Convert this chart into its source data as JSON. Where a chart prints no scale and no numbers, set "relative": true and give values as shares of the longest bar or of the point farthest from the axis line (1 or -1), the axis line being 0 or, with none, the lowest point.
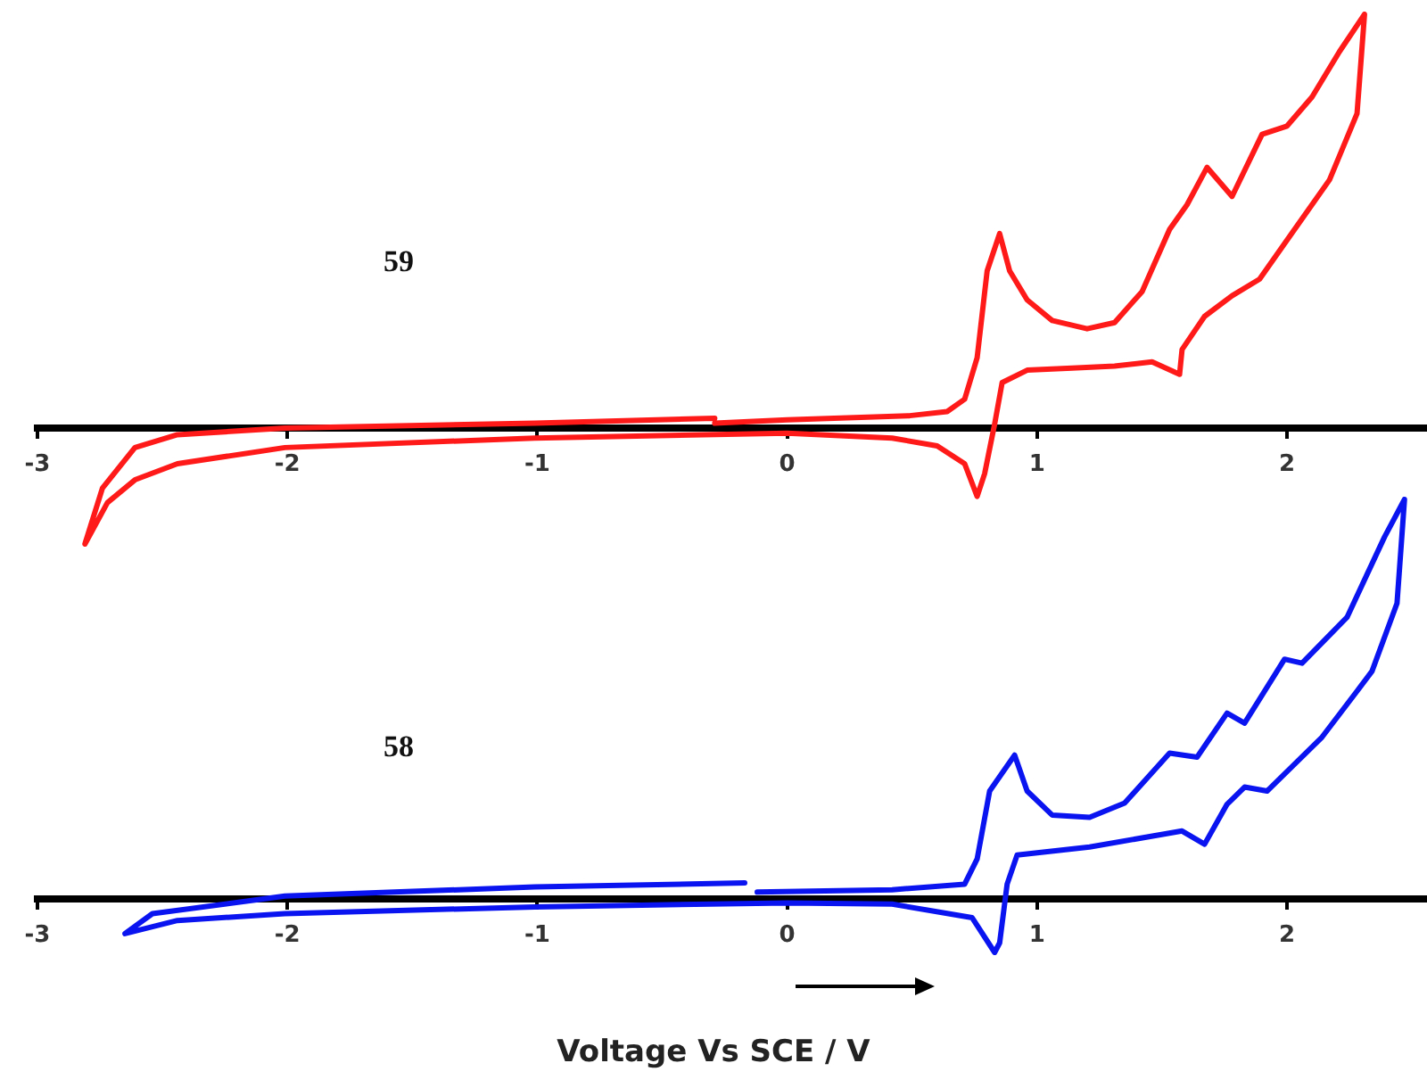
{
  "chart_data": [
    {
      "type": "line",
      "relative": true,
      "xlim": [
        -3,
        2.56
      ],
      "xticks": [
        -3,
        -2,
        -1,
        0,
        1,
        2
      ],
      "grid": false,
      "annotations": [
        "59"
      ],
      "series": [
        {
          "color": "#ff1a1a",
          "x": [
            -0.29,
            0,
            0.49,
            0.64,
            0.71,
            0.76,
            0.8,
            0.85,
            0.89,
            0.96,
            1.06,
            1.2,
            1.31,
            1.42,
            1.53,
            1.6,
            1.68,
            1.78,
            1.9,
            2.0,
            2.1,
            2.21,
            2.31,
            2.28,
            2.17,
            2.03,
            1.89,
            1.78,
            1.67,
            1.58,
            1.57,
            1.46,
            1.31,
            1.14,
            0.96,
            0.86,
            0.83,
            0.79,
            0.76,
            0.71,
            0.6,
            0.42,
            0,
            -1.01,
            -2.01,
            -2.44,
            -2.61,
            -2.72,
            -2.81,
            -2.74,
            -2.61,
            -2.44,
            -2.01,
            -1.01,
            -0.29
          ],
          "values": [
            0.012,
            0.02,
            0.03,
            0.04,
            0.07,
            0.17,
            0.38,
            0.47,
            0.38,
            0.31,
            0.26,
            0.24,
            0.255,
            0.33,
            0.48,
            0.54,
            0.63,
            0.56,
            0.71,
            0.73,
            0.8,
            0.91,
            1.0,
            0.76,
            0.6,
            0.48,
            0.36,
            0.32,
            0.27,
            0.19,
            0.13,
            0.16,
            0.15,
            0.145,
            0.14,
            0.11,
            0.01,
            -0.11,
            -0.165,
            -0.086,
            -0.043,
            -0.024,
            -0.012,
            -0.024,
            -0.047,
            -0.086,
            -0.125,
            -0.18,
            -0.28,
            -0.145,
            -0.047,
            -0.016,
            0,
            0.012,
            0.024
          ]
        }
      ]
    },
    {
      "type": "line",
      "relative": true,
      "xlim": [
        -3,
        2.56
      ],
      "xticks": [
        -3,
        -2,
        -1,
        0,
        1,
        2
      ],
      "grid": false,
      "annotations": [
        "58"
      ],
      "xlabel": "Voltage Vs SCE / V",
      "series": [
        {
          "color": "#0a14f0",
          "x": [
            -0.12,
            0.42,
            0.71,
            0.76,
            0.81,
            0.91,
            0.96,
            1.06,
            1.21,
            1.35,
            1.53,
            1.64,
            1.76,
            1.83,
            1.99,
            2.06,
            2.24,
            2.39,
            2.47,
            2.44,
            2.34,
            2.28,
            2.14,
            1.92,
            1.83,
            1.76,
            1.67,
            1.58,
            1.21,
            0.92,
            0.88,
            0.85,
            0.83,
            0.74,
            0.42,
            0,
            -1.01,
            -2.01,
            -2.44,
            -2.65,
            -2.54,
            -2.01,
            -1.01,
            -0.17
          ],
          "values": [
            0.017,
            0.023,
            0.037,
            0.1,
            0.27,
            0.36,
            0.27,
            0.21,
            0.204,
            0.24,
            0.365,
            0.355,
            0.465,
            0.44,
            0.6,
            0.59,
            0.705,
            0.906,
            1.0,
            0.74,
            0.57,
            0.52,
            0.405,
            0.27,
            0.28,
            0.237,
            0.137,
            0.17,
            0.13,
            0.11,
            0.037,
            -0.11,
            -0.134,
            -0.047,
            -0.013,
            -0.01,
            -0.02,
            -0.037,
            -0.054,
            -0.087,
            -0.037,
            0.007,
            0.03,
            0.04
          ]
        }
      ]
    }
  ]
}
